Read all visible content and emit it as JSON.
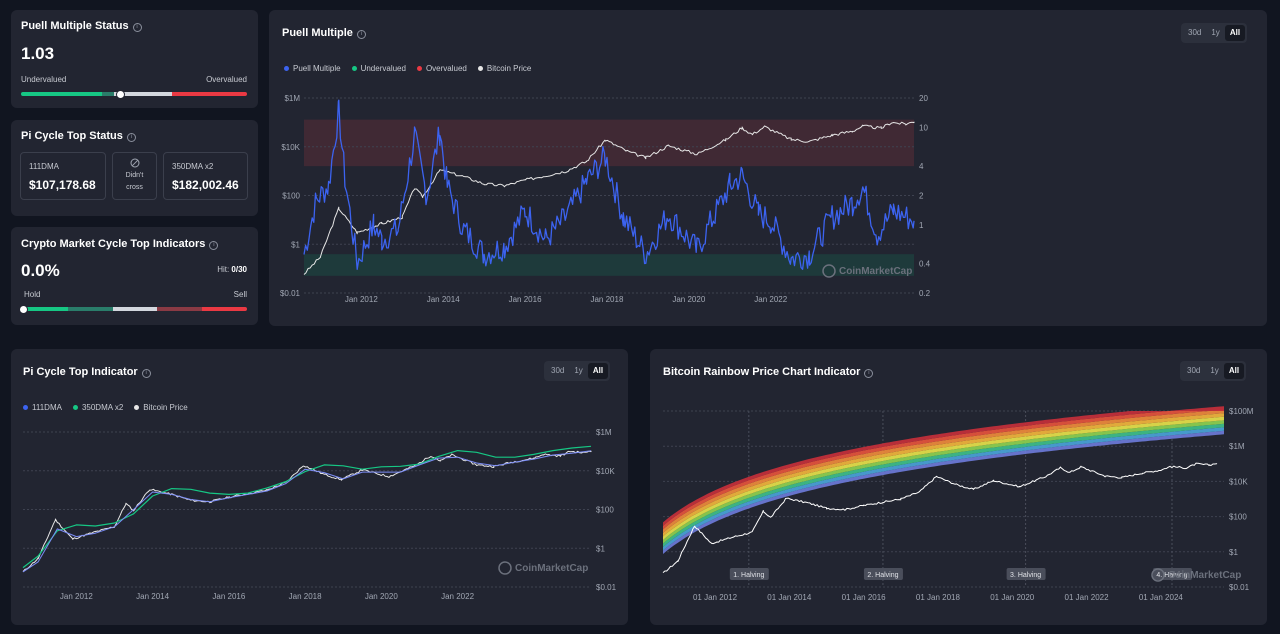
{
  "puell_status": {
    "title": "Puell Multiple Status",
    "value": "1.03",
    "label_left": "Undervalued",
    "label_right": "Overvalued",
    "level": 0.44
  },
  "pi_status": {
    "title": "Pi Cycle Top Status",
    "dma111_label": "111DMA",
    "dma111_value": "$107,178.68",
    "cross_line1": "Didn't",
    "cross_line2": "cross",
    "dma350_label": "350DMA x2",
    "dma350_value": "$182,002.46"
  },
  "cycle_status": {
    "title": "Crypto Market Cycle Top Indicators",
    "value": "0.0%",
    "hit_label": "Hit:",
    "hit_value": "0/30",
    "label_left": "Hold",
    "label_right": "Sell",
    "level": 0.0
  },
  "time_ranges": [
    "30d",
    "1y",
    "All"
  ],
  "active_range": "All",
  "colors": {
    "puell": "#3c63f0",
    "undervalued": "#16c784",
    "overvalued": "#ea3943",
    "price": "#e6e6e6",
    "dma350": "#16c784"
  },
  "watermark": "CoinMarketCap",
  "puell_chart": {
    "title": "Puell Multiple",
    "legend": [
      "Puell Multiple",
      "Undervalued",
      "Overvalued",
      "Bitcoin Price"
    ],
    "left_ticks": [
      "$1M",
      "$10K",
      "$100",
      "$1",
      "$0.01"
    ],
    "right_ticks": [
      "20",
      "10",
      "4",
      "2",
      "1",
      "0.4",
      "0.2"
    ],
    "x_ticks": [
      "Jan 2012",
      "Jan 2014",
      "Jan 2016",
      "Jan 2018",
      "Jan 2020",
      "Jan 2022"
    ]
  },
  "pi_chart": {
    "title": "Pi Cycle Top Indicator",
    "legend": [
      "111DMA",
      "350DMA x2",
      "Bitcoin Price"
    ],
    "right_ticks": [
      "$1M",
      "$10K",
      "$100",
      "$1",
      "$0.01"
    ],
    "x_ticks": [
      "Jan 2012",
      "Jan 2014",
      "Jan 2016",
      "Jan 2018",
      "Jan 2020",
      "Jan 2022"
    ]
  },
  "rainbow_chart": {
    "title": "Bitcoin Rainbow Price Chart Indicator",
    "right_ticks": [
      "$100M",
      "$1M",
      "$10K",
      "$100",
      "$1",
      "$0.01"
    ],
    "x_ticks": [
      "01 Jan 2012",
      "01 Jan 2014",
      "01 Jan 2016",
      "01 Jan 2018",
      "01 Jan 2020",
      "01 Jan 2022",
      "01 Jan 2024"
    ],
    "halvings": [
      "1. Halving",
      "2. Halving",
      "3. Halving",
      "4. Halving"
    ]
  },
  "chart_data": [
    {
      "type": "line",
      "title": "Puell Multiple",
      "x_range": [
        "2010-07",
        "2025-06"
      ],
      "y_left": {
        "scale": "log",
        "range": [
          0.01,
          1000000
        ],
        "label": ""
      },
      "y_right": {
        "scale": "log",
        "range": [
          0.2,
          20
        ],
        "label": ""
      },
      "zones": {
        "undervalued": [
          0.3,
          0.5
        ],
        "overvalued": [
          4,
          12
        ]
      },
      "series": [
        {
          "name": "Bitcoin Price",
          "axis": "left",
          "x": [
            2010.6,
            2011.0,
            2011.45,
            2011.9,
            2012.5,
            2013.0,
            2013.3,
            2013.5,
            2013.92,
            2014.5,
            2015.0,
            2015.5,
            2016.0,
            2016.5,
            2017.0,
            2017.5,
            2017.96,
            2018.5,
            2018.95,
            2019.5,
            2020.2,
            2020.9,
            2021.3,
            2021.55,
            2021.85,
            2022.5,
            2022.95,
            2023.5,
            2024.0,
            2024.25,
            2024.7,
            2024.95,
            2025.3,
            2025.5
          ],
          "y": [
            0.06,
            0.3,
            30,
            3,
            7,
            13,
            200,
            90,
            1100,
            600,
            300,
            250,
            430,
            650,
            1000,
            2500,
            19000,
            6500,
            3500,
            11000,
            5000,
            19000,
            60000,
            32000,
            67000,
            20000,
            16500,
            30000,
            44000,
            70000,
            58000,
            100000,
            85000,
            107000
          ]
        },
        {
          "name": "Puell Multiple",
          "axis": "right",
          "x": [
            2010.6,
            2010.9,
            2011.2,
            2011.45,
            2011.6,
            2011.9,
            2012.3,
            2012.5,
            2012.9,
            2013.3,
            2013.6,
            2013.92,
            2014.1,
            2014.5,
            2015.0,
            2015.5,
            2016.0,
            2016.5,
            2017.0,
            2017.5,
            2017.96,
            2018.4,
            2018.95,
            2019.5,
            2020.2,
            2020.6,
            2021.0,
            2021.3,
            2021.7,
            2022.0,
            2022.5,
            2022.95,
            2023.5,
            2024.0,
            2024.25,
            2024.6,
            2025.0,
            2025.5
          ],
          "y": [
            0.5,
            1.8,
            2.5,
            15,
            3,
            0.4,
            1.0,
            0.7,
            0.9,
            8,
            2.0,
            9,
            2.5,
            0.9,
            0.5,
            0.6,
            1.4,
            0.7,
            1.2,
            2.8,
            5,
            1.2,
            0.5,
            1.3,
            0.55,
            1.2,
            2.5,
            3.2,
            1.3,
            1.1,
            0.45,
            0.5,
            1.2,
            1.7,
            2.4,
            0.8,
            1.4,
            1.1
          ]
        }
      ]
    },
    {
      "type": "line",
      "title": "Pi Cycle Top Indicator",
      "x_range": [
        "2010-07",
        "2025-06"
      ],
      "y": {
        "scale": "log",
        "range": [
          0.01,
          1000000
        ],
        "label": ""
      },
      "series": [
        {
          "name": "111DMA",
          "x": [
            2010.6,
            2011.0,
            2011.5,
            2012.0,
            2012.5,
            2013.0,
            2013.5,
            2014.0,
            2014.5,
            2015.0,
            2015.5,
            2016.0,
            2016.5,
            2017.0,
            2017.5,
            2018.0,
            2018.5,
            2019.0,
            2019.5,
            2020.0,
            2020.5,
            2021.0,
            2021.5,
            2022.0,
            2022.5,
            2023.0,
            2023.5,
            2024.0,
            2024.5,
            2025.0,
            2025.5
          ],
          "y": [
            0.06,
            0.2,
            10,
            4,
            6,
            13,
            100,
            800,
            600,
            330,
            250,
            400,
            600,
            900,
            2200,
            12000,
            8000,
            3800,
            8500,
            8500,
            8500,
            20000,
            45000,
            50000,
            25000,
            18000,
            28000,
            40000,
            65000,
            80000,
            107000
          ]
        },
        {
          "name": "350DMA x2",
          "x": [
            2010.6,
            2011.0,
            2011.5,
            2012.0,
            2012.5,
            2013.0,
            2013.5,
            2014.0,
            2014.5,
            2015.0,
            2015.5,
            2016.0,
            2016.5,
            2017.0,
            2017.5,
            2018.0,
            2018.5,
            2019.0,
            2019.5,
            2020.0,
            2020.5,
            2021.0,
            2021.5,
            2022.0,
            2022.5,
            2023.0,
            2023.5,
            2024.0,
            2024.5,
            2025.0,
            2025.5
          ],
          "y": [
            0.1,
            0.4,
            8,
            16,
            14,
            20,
            60,
            500,
            1200,
            1100,
            700,
            600,
            700,
            1300,
            2800,
            9000,
            20000,
            18000,
            12000,
            16000,
            17000,
            22000,
            55000,
            110000,
            90000,
            50000,
            50000,
            70000,
            110000,
            150000,
            182000
          ]
        },
        {
          "name": "Bitcoin Price",
          "x": [
            2010.6,
            2011.0,
            2011.45,
            2011.9,
            2012.5,
            2013.0,
            2013.3,
            2013.5,
            2013.92,
            2014.5,
            2015.0,
            2015.5,
            2016.0,
            2016.5,
            2017.0,
            2017.5,
            2017.96,
            2018.5,
            2018.95,
            2019.5,
            2020.2,
            2020.9,
            2021.3,
            2021.55,
            2021.85,
            2022.5,
            2022.95,
            2023.5,
            2024.0,
            2024.25,
            2024.7,
            2024.95,
            2025.3,
            2025.5
          ],
          "y": [
            0.06,
            0.3,
            30,
            3,
            7,
            13,
            200,
            90,
            1100,
            600,
            300,
            250,
            430,
            650,
            1000,
            2500,
            19000,
            6500,
            3500,
            11000,
            5000,
            19000,
            60000,
            32000,
            67000,
            20000,
            16500,
            30000,
            44000,
            70000,
            58000,
            100000,
            85000,
            107000
          ]
        }
      ]
    },
    {
      "type": "area",
      "title": "Bitcoin Rainbow Price Chart Indicator",
      "x_range": [
        "2010-07",
        "2025-09"
      ],
      "y": {
        "scale": "log",
        "range": [
          0.01,
          100000000
        ],
        "label": ""
      },
      "halvings": [
        [
          "1. Halving",
          "2012-11-28"
        ],
        [
          "2. Halving",
          "2016-07-09"
        ],
        [
          "3. Halving",
          "2020-05-11"
        ],
        [
          "4. Halving",
          "2024-04-20"
        ]
      ],
      "band_count": 9,
      "series": [
        {
          "name": "Bitcoin Price",
          "x": [
            2010.6,
            2011.0,
            2011.45,
            2011.9,
            2012.5,
            2013.0,
            2013.3,
            2013.5,
            2013.92,
            2014.5,
            2015.0,
            2015.5,
            2016.0,
            2016.5,
            2017.0,
            2017.5,
            2017.96,
            2018.5,
            2018.95,
            2019.5,
            2020.2,
            2020.9,
            2021.3,
            2021.55,
            2021.85,
            2022.5,
            2022.95,
            2023.5,
            2024.0,
            2024.25,
            2024.7,
            2024.95,
            2025.3,
            2025.5
          ],
          "y": [
            0.06,
            0.3,
            30,
            3,
            7,
            13,
            200,
            90,
            1100,
            600,
            300,
            250,
            430,
            650,
            1000,
            2500,
            19000,
            6500,
            3500,
            11000,
            5000,
            19000,
            60000,
            32000,
            67000,
            20000,
            16500,
            30000,
            44000,
            70000,
            58000,
            100000,
            85000,
            107000
          ]
        }
      ]
    }
  ]
}
